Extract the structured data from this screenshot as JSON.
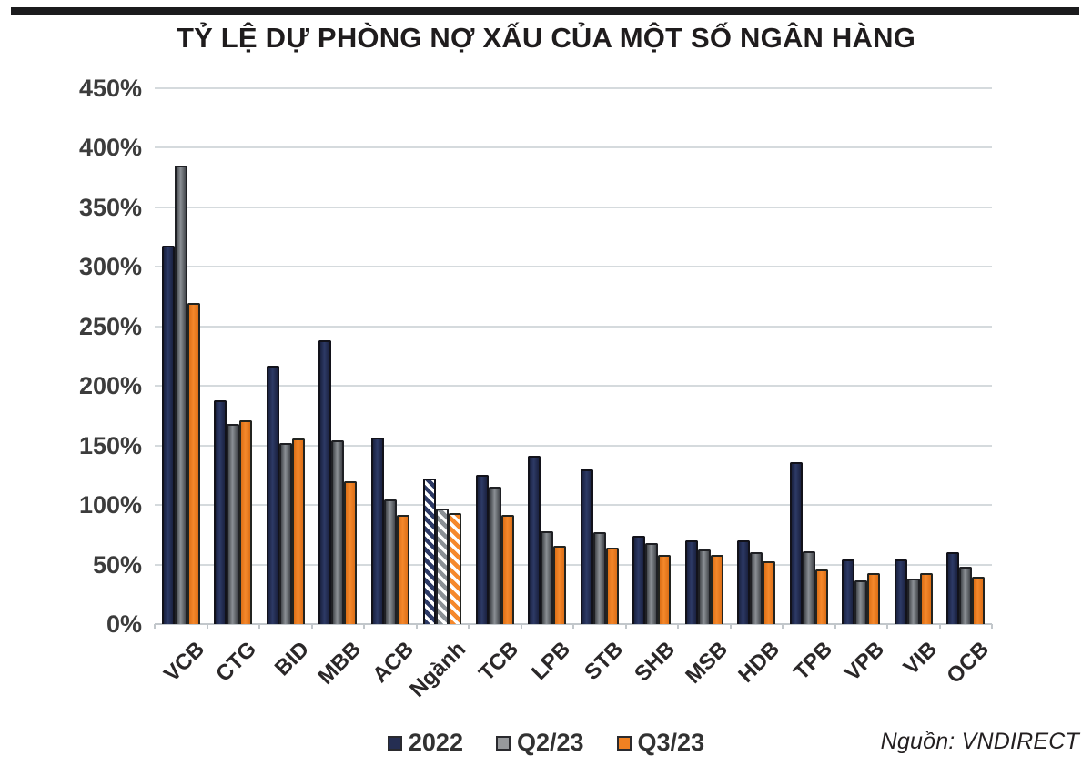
{
  "header": {
    "title": "TỶ LỆ DỰ PHÒNG NỢ XẤU CỦA MỘT SỐ NGÂN HÀNG"
  },
  "source": {
    "label": "Nguồn: VNDIRECT"
  },
  "colors": {
    "top_rule": "#1b1b1d",
    "grid": "#d5dadd",
    "axis": "#c2c7cb",
    "title_text": "#1f1c1d",
    "ytick_text": "#3c3c3c",
    "xlabel_text": "#2a2728",
    "legend_text": "#323232",
    "navy": "#252e52",
    "gray": "#97999c",
    "orange": "#f08122"
  },
  "chart_data": {
    "type": "bar",
    "title": "TỶ LỆ DỰ PHÒNG NỢ XẤU CỦA MỘT SỐ NGÂN HÀNG",
    "categories": [
      "VCB",
      "CTG",
      "BID",
      "MBB",
      "ACB",
      "Ngành",
      "TCB",
      "LPB",
      "STB",
      "SHB",
      "MSB",
      "HDB",
      "TPB",
      "VPB",
      "VIB",
      "OCB"
    ],
    "series": [
      {
        "name": "2022",
        "values": [
          318,
          188,
          217,
          238,
          157,
          122,
          125,
          141,
          130,
          74,
          70,
          70,
          136,
          54,
          54,
          60
        ],
        "fill_mid": "#2d3a66",
        "fill_edge": "#1a2140",
        "border": "#12121a",
        "swatch": "#252e52"
      },
      {
        "name": "Q2/23",
        "values": [
          385,
          168,
          152,
          154,
          105,
          97,
          115,
          78,
          77,
          68,
          63,
          60,
          61,
          37,
          38,
          48
        ],
        "fill_mid": "#8b9095",
        "fill_edge": "#45484d",
        "border": "#1f2024",
        "swatch": "#97999c"
      },
      {
        "name": "Q3/23",
        "values": [
          270,
          171,
          156,
          120,
          92,
          93,
          92,
          66,
          64,
          58,
          58,
          53,
          46,
          43,
          43,
          40
        ],
        "fill_mid": "#f5882b",
        "fill_edge": "#dd6f16",
        "border": "#232420",
        "swatch": "#f08122"
      }
    ],
    "hatched_category": "Ngành",
    "value_suffix": "%",
    "ylim": [
      0,
      450
    ],
    "ytick_step": 50,
    "ytick_labels": [
      "450%",
      "400%",
      "350%",
      "300%",
      "250%",
      "200%",
      "150%",
      "100%",
      "50%",
      "0%"
    ],
    "grid": true,
    "legend_position": "bottom",
    "legend": [
      "2022",
      "Q2/23",
      "Q3/23"
    ]
  }
}
